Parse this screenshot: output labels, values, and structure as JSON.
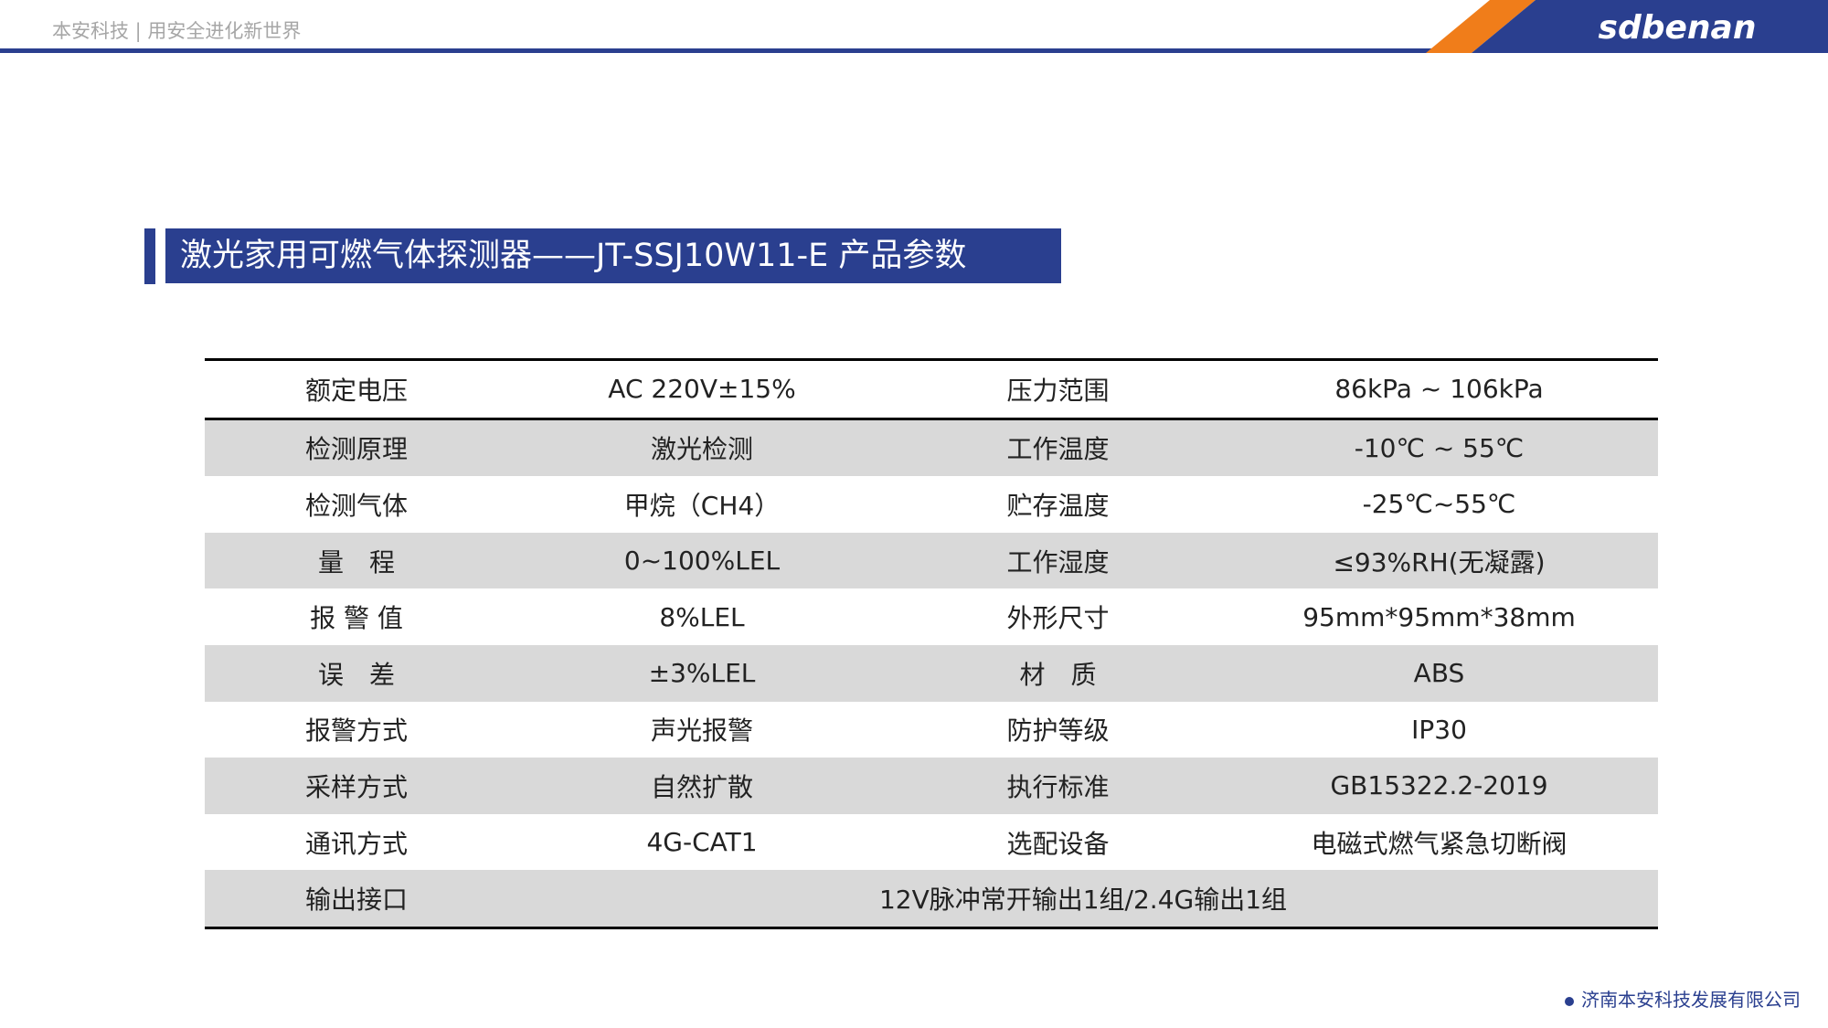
{
  "header": {
    "tagline": "本安科技 | 用安全进化新世界",
    "logo": "sdbenan"
  },
  "title": "激光家用可燃气体探测器——JT-SSJ10W11-E 产品参数",
  "table": {
    "rows": [
      [
        "额定电压",
        "AC 220V±15%",
        "压力范围",
        "86kPa ~ 106kPa"
      ],
      [
        "检测原理",
        "激光检测",
        "工作温度",
        "-10℃ ~ 55℃"
      ],
      [
        "检测气体",
        "甲烷（CH4）",
        "贮存温度",
        "-25℃~55℃"
      ],
      [
        "量　程",
        "0~100%LEL",
        "工作湿度",
        "≤93%RH(无凝露)"
      ],
      [
        "报 警 值",
        "8%LEL",
        "外形尺寸",
        "95mm*95mm*38mm"
      ],
      [
        "误　差",
        "±3%LEL",
        "材　质",
        "ABS"
      ],
      [
        "报警方式",
        "声光报警",
        "防护等级",
        "IP30"
      ],
      [
        "采样方式",
        "自然扩散",
        "执行标准",
        "GB15322.2-2019"
      ],
      [
        "通讯方式",
        "4G-CAT1",
        "选配设备",
        "电磁式燃气紧急切断阀"
      ],
      [
        "输出接口",
        "12V脉冲常开输出1组/2.4G输出1组"
      ]
    ]
  },
  "footer": {
    "company": "济南本安科技发展有限公司"
  }
}
